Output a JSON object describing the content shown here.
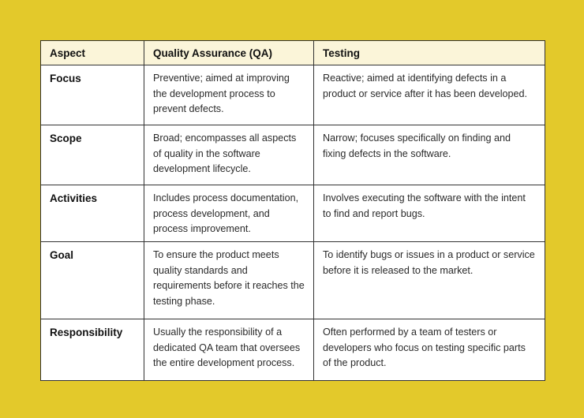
{
  "table": {
    "headers": [
      "Aspect",
      "Quality Assurance (QA)",
      "Testing"
    ],
    "rows": [
      [
        "Focus",
        "Preventive; aimed at improving the development process to prevent defects.",
        "Reactive; aimed at identifying defects in a product or service after it has been developed."
      ],
      [
        "Scope",
        "Broad; encompasses all aspects of quality in the software development lifecycle.",
        "Narrow; focuses specifically on finding and fixing defects in the software."
      ],
      [
        "Activities",
        "Includes process documentation, process development, and process improvement.",
        "Involves executing the software with the intent to find and report bugs."
      ],
      [
        "Goal",
        "To ensure the product meets quality standards and requirements before it reaches the testing phase.",
        "To identify bugs or issues in a product or service before it is released to the market."
      ],
      [
        "Responsibility",
        "Usually the responsibility of a dedicated QA team that oversees the entire development process.",
        "Often performed by a team of testers or developers who focus on testing specific parts of the product."
      ]
    ]
  },
  "colors": {
    "background": "#e3c92b",
    "header": "#fbf5d9",
    "border": "#333333"
  }
}
